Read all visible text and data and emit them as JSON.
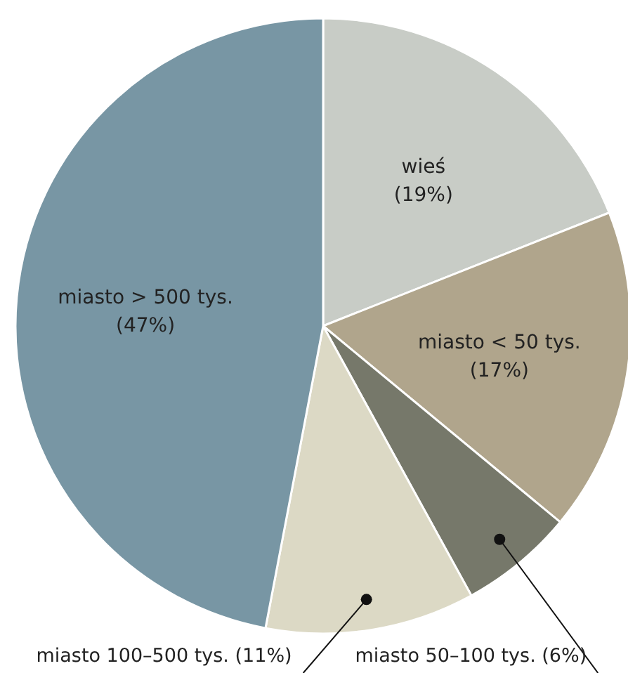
{
  "chart_data": {
    "type": "pie",
    "categories": [
      "wieś",
      "miasto < 50 tys.",
      "miasto 50–100 tys.",
      "miasto 100–500 tys.",
      "miasto > 500 tys."
    ],
    "values": [
      19,
      17,
      6,
      11,
      47
    ],
    "colors": [
      "#c8ccc6",
      "#b0a58c",
      "#76786a",
      "#dcd9c5",
      "#7896a4"
    ],
    "value_labels": [
      "(19%)",
      "(17%)",
      "(6%)",
      "(11%)",
      "(47%)"
    ]
  }
}
